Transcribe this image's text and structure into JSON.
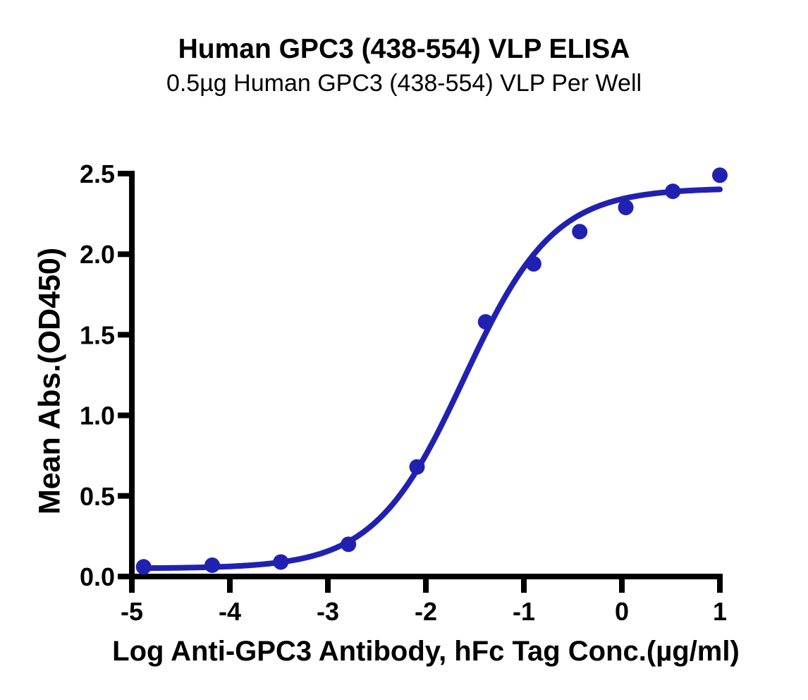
{
  "chart_data": {
    "type": "scatter",
    "title": "Human GPC3 (438-554) VLP ELISA",
    "subtitle": "0.5µg Human GPC3 (438-554) VLP Per Well",
    "xlabel": "Log Anti-GPC3 Antibody, hFc Tag Conc.(µg/ml)",
    "ylabel": "Mean Abs.(OD450)",
    "xlim": [
      -5,
      1
    ],
    "ylim": [
      0,
      2.5
    ],
    "x_ticks": [
      -5,
      -4,
      -3,
      -2,
      -1,
      0,
      1
    ],
    "x_tick_labels": [
      "-5",
      "-4",
      "-3",
      "-2",
      "-1",
      "0",
      "1"
    ],
    "y_ticks": [
      0,
      0.5,
      1.0,
      1.5,
      2.0,
      2.5
    ],
    "y_tick_labels": [
      "0.0",
      "0.5",
      "1.0",
      "1.5",
      "2.0",
      "2.5"
    ],
    "grid": false,
    "legend": "none",
    "axis_color": "#000000",
    "series_color": "#2121b1",
    "series": [
      {
        "marker": "circle",
        "color": "#2121b1",
        "points": [
          {
            "x": -4.88,
            "y": 0.06
          },
          {
            "x": -4.18,
            "y": 0.07
          },
          {
            "x": -3.48,
            "y": 0.09
          },
          {
            "x": -2.79,
            "y": 0.2
          },
          {
            "x": -2.09,
            "y": 0.68
          },
          {
            "x": -1.39,
            "y": 1.58
          },
          {
            "x": -0.9,
            "y": 1.94
          },
          {
            "x": -0.43,
            "y": 2.14
          },
          {
            "x": 0.04,
            "y": 2.29
          },
          {
            "x": 0.52,
            "y": 2.39
          },
          {
            "x": 1.0,
            "y": 2.49
          }
        ]
      }
    ],
    "fit_curve": {
      "model": "4PL",
      "bottom": 0.05,
      "top": 2.41,
      "log_ec50": -1.61,
      "hill_slope": 0.95,
      "x_start": -4.88,
      "x_end": 1.0,
      "color": "#2121b1"
    }
  }
}
